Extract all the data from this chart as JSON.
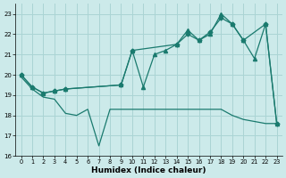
{
  "xlabel": "Humidex (Indice chaleur)",
  "bg_color": "#cceaea",
  "grid_color": "#aad4d4",
  "line_color": "#1a7a6e",
  "xlim": [
    -0.5,
    23.5
  ],
  "ylim": [
    16,
    23.5
  ],
  "yticks": [
    16,
    17,
    18,
    19,
    20,
    21,
    22,
    23
  ],
  "xticks": [
    0,
    1,
    2,
    3,
    4,
    5,
    6,
    7,
    8,
    9,
    10,
    11,
    12,
    13,
    14,
    15,
    16,
    17,
    18,
    19,
    20,
    21,
    22,
    23
  ],
  "series1_x": [
    0,
    1,
    2,
    3,
    4,
    9,
    10,
    14,
    15,
    16,
    17,
    18,
    19,
    20,
    22,
    23
  ],
  "series1_y": [
    20.0,
    19.4,
    19.1,
    19.2,
    19.3,
    19.5,
    21.2,
    21.5,
    22.0,
    21.7,
    22.1,
    22.8,
    22.5,
    21.7,
    22.5,
    17.6
  ],
  "series2_x": [
    0,
    1,
    2,
    3,
    4,
    9,
    10,
    11,
    12,
    13,
    14,
    15,
    16,
    17,
    18,
    19,
    20,
    21,
    22,
    23
  ],
  "series2_y": [
    20.0,
    19.4,
    19.1,
    19.2,
    19.3,
    19.5,
    21.2,
    19.4,
    21.0,
    21.2,
    21.5,
    22.2,
    21.7,
    22.0,
    23.0,
    22.5,
    21.7,
    20.8,
    22.5,
    17.6
  ],
  "series3_x": [
    0,
    1,
    2,
    3,
    4,
    5,
    6,
    7,
    8,
    9,
    10,
    11,
    12,
    13,
    14,
    15,
    16,
    17,
    18,
    19,
    20,
    21,
    22,
    23
  ],
  "series3_y": [
    19.9,
    19.3,
    18.9,
    18.8,
    18.1,
    18.0,
    18.3,
    16.5,
    18.3,
    18.3,
    18.3,
    18.3,
    18.3,
    18.3,
    18.3,
    18.3,
    18.3,
    18.3,
    18.3,
    18.0,
    17.8,
    17.7,
    17.6,
    17.6
  ]
}
